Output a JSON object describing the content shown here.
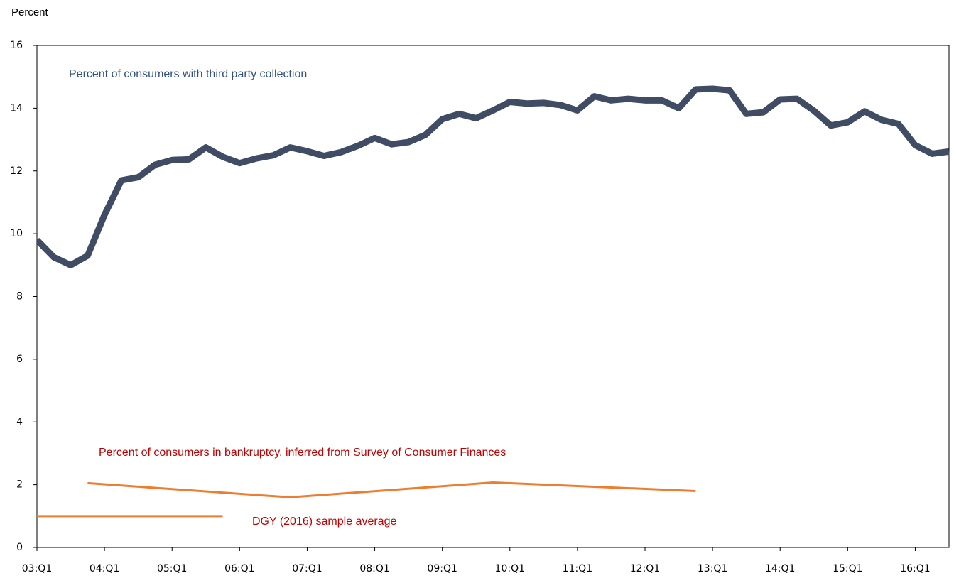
{
  "chart_data": {
    "type": "line",
    "y_label": "Percent",
    "xlim": [
      2003,
      2016.5
    ],
    "xticks": [
      {
        "value": 2003,
        "label": "03:Q1"
      },
      {
        "value": 2004,
        "label": "04:Q1"
      },
      {
        "value": 2005,
        "label": "05:Q1"
      },
      {
        "value": 2006,
        "label": "06:Q1"
      },
      {
        "value": 2007,
        "label": "07:Q1"
      },
      {
        "value": 2008,
        "label": "08:Q1"
      },
      {
        "value": 2009,
        "label": "09:Q1"
      },
      {
        "value": 2010,
        "label": "10:Q1"
      },
      {
        "value": 2011,
        "label": "11:Q1"
      },
      {
        "value": 2012,
        "label": "12:Q1"
      },
      {
        "value": 2013,
        "label": "13:Q1"
      },
      {
        "value": 2014,
        "label": "14:Q1"
      },
      {
        "value": 2015,
        "label": "15:Q1"
      },
      {
        "value": 2016,
        "label": "16:Q1"
      }
    ],
    "ylim": [
      0,
      16
    ],
    "yticks": [
      0,
      2,
      4,
      6,
      8,
      10,
      12,
      14,
      16
    ],
    "grid": false,
    "series": [
      {
        "name": "Percent of consumers with third party collection",
        "color": "#3f4c63",
        "label_color": "#2f4f86",
        "x": [
          2003,
          2003.25,
          2003.5,
          2003.75,
          2004,
          2004.25,
          2004.5,
          2004.75,
          2005,
          2005.25,
          2005.5,
          2005.75,
          2006,
          2006.25,
          2006.5,
          2006.75,
          2007,
          2007.25,
          2007.5,
          2007.75,
          2008,
          2008.25,
          2008.5,
          2008.75,
          2009,
          2009.25,
          2009.5,
          2009.75,
          2010,
          2010.25,
          2010.5,
          2010.75,
          2011,
          2011.25,
          2011.5,
          2011.75,
          2012,
          2012.25,
          2012.5,
          2012.75,
          2013,
          2013.25,
          2013.5,
          2013.75,
          2014,
          2014.25,
          2014.5,
          2014.75,
          2015,
          2015.25,
          2015.5,
          2015.75,
          2016,
          2016.25,
          2016.5
        ],
        "values": [
          9.8,
          9.25,
          9.0,
          9.3,
          10.6,
          11.7,
          11.8,
          12.2,
          12.35,
          12.37,
          12.75,
          12.45,
          12.25,
          12.4,
          12.5,
          12.75,
          12.63,
          12.48,
          12.6,
          12.8,
          13.05,
          12.85,
          12.92,
          13.15,
          13.65,
          13.82,
          13.68,
          13.93,
          14.2,
          14.15,
          14.17,
          14.1,
          13.93,
          14.38,
          14.25,
          14.3,
          14.25,
          14.25,
          14.0,
          14.6,
          14.62,
          14.57,
          13.82,
          13.87,
          14.28,
          14.3,
          13.92,
          13.45,
          13.55,
          13.9,
          13.63,
          13.5,
          12.82,
          12.55,
          12.62
        ]
      },
      {
        "name": "Percent of consumers in bankruptcy, inferred from Survey of Consumer Finances",
        "color": "#ed7d31",
        "label_color": "#c00000",
        "x": [
          2003.75,
          2006.75,
          2009.75,
          2012.75
        ],
        "values": [
          2.05,
          1.6,
          2.07,
          1.8
        ]
      },
      {
        "name": "DGY (2016) sample average",
        "color": "#ed7d31",
        "label_color": "#c00000",
        "x": [
          2003,
          2005.75
        ],
        "values": [
          1,
          1
        ]
      }
    ]
  }
}
